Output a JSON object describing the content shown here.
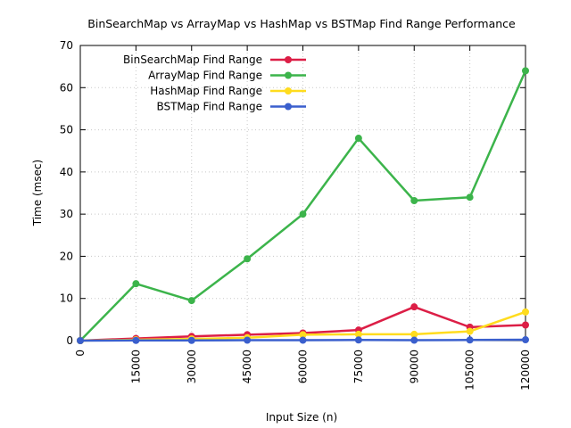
{
  "chart_data": {
    "type": "line",
    "title": "BinSearchMap vs ArrayMap vs HashMap vs BSTMap Find Range Performance",
    "xlabel": "Input Size (n)",
    "ylabel": "Time (msec)",
    "x": [
      0,
      15000,
      30000,
      45000,
      60000,
      75000,
      90000,
      105000,
      120000
    ],
    "x_tick_labels": [
      "0",
      "15000",
      "30000",
      "45000",
      "60000",
      "75000",
      "90000",
      "105000",
      "120000"
    ],
    "xlim": [
      0,
      120000
    ],
    "ylim": [
      0,
      70
    ],
    "y_ticks": [
      0,
      10,
      20,
      30,
      40,
      50,
      60,
      70
    ],
    "y_tick_labels": [
      "0",
      "10",
      "20",
      "30",
      "40",
      "50",
      "60",
      "70"
    ],
    "grid": true,
    "legend_position": "top-left",
    "series": [
      {
        "name": "BinSearchMap Find Range",
        "color": "#dc1e46",
        "values": [
          0.0,
          0.5,
          1.0,
          1.4,
          1.8,
          2.5,
          8.0,
          3.2,
          3.7
        ]
      },
      {
        "name": "ArrayMap Find Range",
        "color": "#3cb44b",
        "values": [
          0.0,
          13.5,
          9.5,
          19.4,
          30.0,
          48.0,
          33.2,
          34.0,
          64.0
        ]
      },
      {
        "name": "HashMap Find Range",
        "color": "#ffdc1e",
        "values": [
          0.0,
          0.2,
          0.4,
          0.7,
          1.4,
          1.5,
          1.5,
          2.2,
          6.8
        ]
      },
      {
        "name": "BSTMap Find Range",
        "color": "#3a5fcd",
        "values": [
          0.0,
          0.05,
          0.05,
          0.1,
          0.1,
          0.15,
          0.1,
          0.15,
          0.2
        ]
      }
    ]
  }
}
